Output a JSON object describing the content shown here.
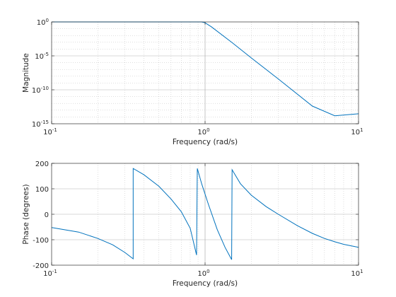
{
  "chart_data": [
    {
      "type": "line",
      "name": "magnitude-plot",
      "xlabel": "Frequency (rad/s)",
      "ylabel": "Magnitude",
      "xscale": "log",
      "yscale": "log",
      "xlim": [
        0.1,
        10
      ],
      "ylim": [
        1e-15,
        1
      ],
      "grid": "major and minor",
      "x_ticks": [
        {
          "base": "10",
          "exp": "-1",
          "value": 0.1
        },
        {
          "base": "10",
          "exp": "0",
          "value": 1
        },
        {
          "base": "10",
          "exp": "1",
          "value": 10
        }
      ],
      "y_ticks": [
        {
          "base": "10",
          "exp": "0",
          "value": 0
        },
        {
          "base": "10",
          "exp": "-5",
          "value": -5
        },
        {
          "base": "10",
          "exp": "-10",
          "value": -10
        },
        {
          "base": "10",
          "exp": "-15",
          "value": -15
        }
      ],
      "series": [
        {
          "color": "#0072bd",
          "x": [
            0.1,
            0.2,
            0.4,
            0.6,
            0.8,
            0.95,
            1.0,
            1.1,
            1.5,
            2,
            3,
            5,
            7,
            10
          ],
          "y": [
            1,
            1,
            1,
            1,
            1,
            1,
            0.75,
            0.19,
            0.0009,
            5e-06,
            4e-09,
            4e-13,
            1.5e-14,
            3e-14
          ]
        }
      ]
    },
    {
      "type": "line",
      "name": "phase-plot",
      "xlabel": "Frequency (rad/s)",
      "ylabel": "Phase (degrees)",
      "xscale": "log",
      "yscale": "linear",
      "xlim": [
        0.1,
        10
      ],
      "ylim": [
        -200,
        200
      ],
      "grid": "major and minor",
      "x_ticks": [
        {
          "base": "10",
          "exp": "-1",
          "value": 0.1
        },
        {
          "base": "10",
          "exp": "0",
          "value": 1
        },
        {
          "base": "10",
          "exp": "1",
          "value": 10
        }
      ],
      "y_ticks": [
        {
          "text": "200",
          "value": 200
        },
        {
          "text": "100",
          "value": 100
        },
        {
          "text": "0",
          "value": 0
        },
        {
          "text": "-100",
          "value": -100
        },
        {
          "text": "-200",
          "value": -200
        }
      ],
      "series": [
        {
          "color": "#0072bd",
          "x": [
            0.1,
            0.15,
            0.2,
            0.25,
            0.3,
            0.34,
            0.34,
            0.4,
            0.5,
            0.6,
            0.7,
            0.8,
            0.88,
            0.89,
            0.95,
            1.05,
            1.2,
            1.35,
            1.49,
            1.5,
            1.7,
            2,
            2.5,
            3,
            4,
            5,
            6,
            7,
            8,
            10
          ],
          "y": [
            -52,
            -70,
            -95,
            -120,
            -150,
            -175,
            180,
            155,
            110,
            60,
            10,
            -55,
            -160,
            180,
            120,
            40,
            -60,
            -130,
            -178,
            175,
            120,
            75,
            30,
            0,
            -45,
            -75,
            -95,
            -108,
            -118,
            -130
          ]
        }
      ]
    }
  ]
}
